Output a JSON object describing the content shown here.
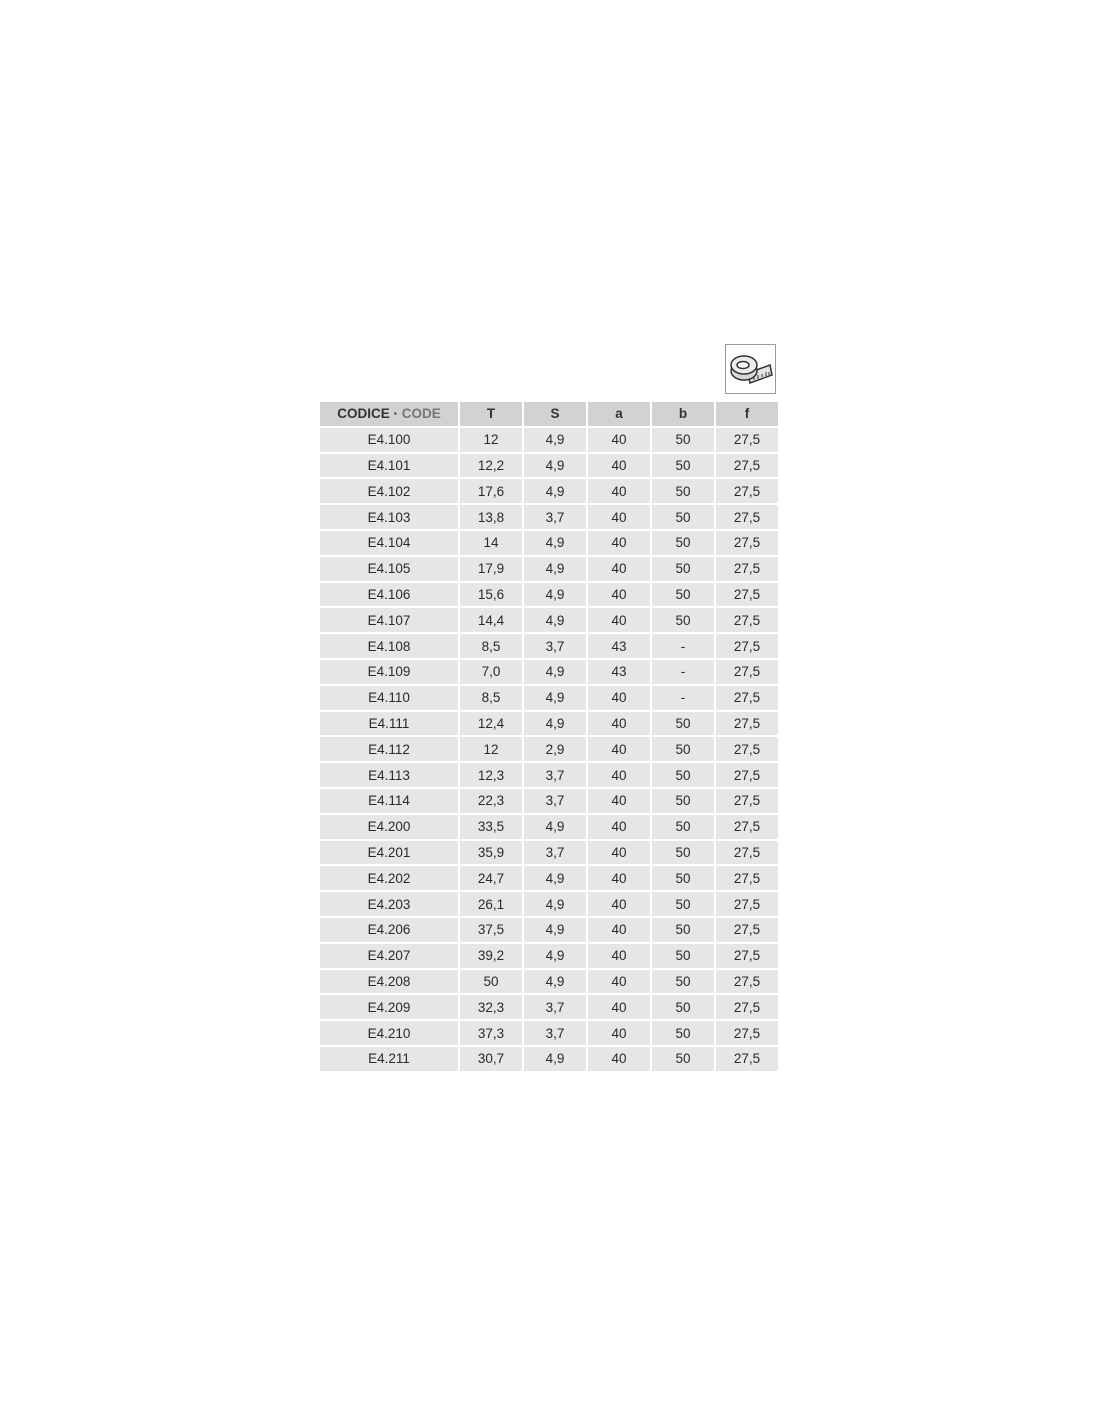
{
  "icon": "measuring-tape-icon",
  "table": {
    "headers": {
      "code_it": "CODICE",
      "separator": "·",
      "code_en": "CODE",
      "cols": [
        "T",
        "S",
        "a",
        "b",
        "f"
      ]
    },
    "rows": [
      [
        "E4.100",
        "12",
        "4,9",
        "40",
        "50",
        "27,5"
      ],
      [
        "E4.101",
        "12,2",
        "4,9",
        "40",
        "50",
        "27,5"
      ],
      [
        "E4.102",
        "17,6",
        "4,9",
        "40",
        "50",
        "27,5"
      ],
      [
        "E4.103",
        "13,8",
        "3,7",
        "40",
        "50",
        "27,5"
      ],
      [
        "E4.104",
        "14",
        "4,9",
        "40",
        "50",
        "27,5"
      ],
      [
        "E4.105",
        "17,9",
        "4,9",
        "40",
        "50",
        "27,5"
      ],
      [
        "E4.106",
        "15,6",
        "4,9",
        "40",
        "50",
        "27,5"
      ],
      [
        "E4.107",
        "14,4",
        "4,9",
        "40",
        "50",
        "27,5"
      ],
      [
        "E4.108",
        "8,5",
        "3,7",
        "43",
        "-",
        "27,5"
      ],
      [
        "E4.109",
        "7,0",
        "4,9",
        "43",
        "-",
        "27,5"
      ],
      [
        "E4.110",
        "8,5",
        "4,9",
        "40",
        "-",
        "27,5"
      ],
      [
        "E4.111",
        "12,4",
        "4,9",
        "40",
        "50",
        "27,5"
      ],
      [
        "E4.112",
        "12",
        "2,9",
        "40",
        "50",
        "27,5"
      ],
      [
        "E4.113",
        "12,3",
        "3,7",
        "40",
        "50",
        "27,5"
      ],
      [
        "E4.114",
        "22,3",
        "3,7",
        "40",
        "50",
        "27,5"
      ],
      [
        "E4.200",
        "33,5",
        "4,9",
        "40",
        "50",
        "27,5"
      ],
      [
        "E4.201",
        "35,9",
        "3,7",
        "40",
        "50",
        "27,5"
      ],
      [
        "E4.202",
        "24,7",
        "4,9",
        "40",
        "50",
        "27,5"
      ],
      [
        "E4.203",
        "26,1",
        "4,9",
        "40",
        "50",
        "27,5"
      ],
      [
        "E4.206",
        "37,5",
        "4,9",
        "40",
        "50",
        "27,5"
      ],
      [
        "E4.207",
        "39,2",
        "4,9",
        "40",
        "50",
        "27,5"
      ],
      [
        "E4.208",
        "50",
        "4,9",
        "40",
        "50",
        "27,5"
      ],
      [
        "E4.209",
        "32,3",
        "3,7",
        "40",
        "50",
        "27,5"
      ],
      [
        "E4.210",
        "37,3",
        "3,7",
        "40",
        "50",
        "27,5"
      ],
      [
        "E4.211",
        "30,7",
        "4,9",
        "40",
        "50",
        "27,5"
      ]
    ]
  }
}
